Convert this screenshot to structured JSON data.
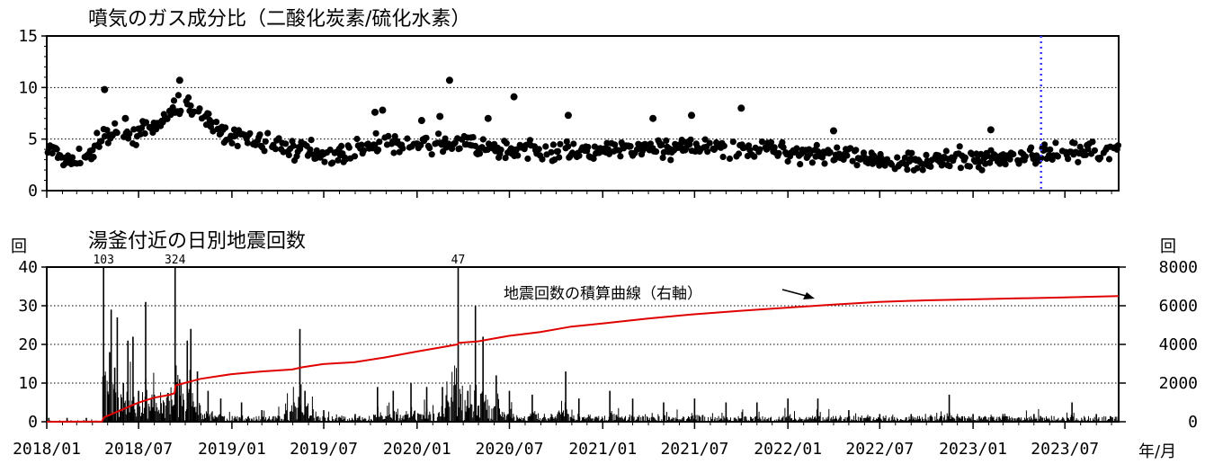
{
  "chart_data": [
    {
      "type": "scatter",
      "title": "噴気のガス成分比（二酸化炭素/硫化水素）",
      "yticks": [
        0,
        5,
        10,
        15
      ],
      "ylim": [
        0,
        15
      ],
      "xlim": [
        "2018-01-01",
        "2023-10-15"
      ],
      "grid": "horizontal dotted",
      "vline": {
        "date": "2023-05-15",
        "color": "#3b3bff",
        "style": "dotted"
      },
      "marker_color": "#000000",
      "series": [
        {
          "values": [
            {
              "x": "2018-01-01",
              "y": 4.0
            },
            {
              "x": "2018-01-20",
              "y": 3.4
            },
            {
              "x": "2018-02-10",
              "y": 3.0
            },
            {
              "x": "2018-03-01",
              "y": 2.9
            },
            {
              "x": "2018-03-25",
              "y": 3.5
            },
            {
              "x": "2018-04-15",
              "y": 4.7
            },
            {
              "x": "2018-05-10",
              "y": 5.5
            },
            {
              "x": "2018-06-05",
              "y": 5.4
            },
            {
              "x": "2018-07-01",
              "y": 5.5
            },
            {
              "x": "2018-07-25",
              "y": 5.9
            },
            {
              "x": "2018-08-15",
              "y": 6.8
            },
            {
              "x": "2018-09-05",
              "y": 7.8
            },
            {
              "x": "2018-09-25",
              "y": 8.3
            },
            {
              "x": "2018-10-15",
              "y": 8.1
            },
            {
              "x": "2018-11-05",
              "y": 7.1
            },
            {
              "x": "2018-11-25",
              "y": 6.1
            },
            {
              "x": "2018-12-20",
              "y": 5.5
            },
            {
              "x": "2019-01-20",
              "y": 5.2
            },
            {
              "x": "2019-02-20",
              "y": 4.8
            },
            {
              "x": "2019-03-25",
              "y": 4.4
            },
            {
              "x": "2019-05-01",
              "y": 4.1
            },
            {
              "x": "2019-06-01",
              "y": 3.9
            },
            {
              "x": "2019-07-01",
              "y": 3.6
            },
            {
              "x": "2019-08-01",
              "y": 3.5
            },
            {
              "x": "2019-09-01",
              "y": 3.9
            },
            {
              "x": "2019-10-01",
              "y": 4.4
            },
            {
              "x": "2019-11-01",
              "y": 4.5
            },
            {
              "x": "2019-12-15",
              "y": 4.4
            },
            {
              "x": "2020-02-01",
              "y": 4.3
            },
            {
              "x": "2020-03-15",
              "y": 4.6
            },
            {
              "x": "2020-05-01",
              "y": 4.2
            },
            {
              "x": "2020-06-15",
              "y": 4.0
            },
            {
              "x": "2020-08-01",
              "y": 3.9
            },
            {
              "x": "2020-09-15",
              "y": 3.8
            },
            {
              "x": "2020-11-01",
              "y": 3.9
            },
            {
              "x": "2020-12-15",
              "y": 3.8
            },
            {
              "x": "2021-02-01",
              "y": 4.0
            },
            {
              "x": "2021-04-01",
              "y": 4.1
            },
            {
              "x": "2021-06-01",
              "y": 4.1
            },
            {
              "x": "2021-08-01",
              "y": 4.2
            },
            {
              "x": "2021-10-01",
              "y": 4.0
            },
            {
              "x": "2021-12-01",
              "y": 3.9
            },
            {
              "x": "2022-02-01",
              "y": 3.7
            },
            {
              "x": "2022-04-01",
              "y": 3.5
            },
            {
              "x": "2022-06-01",
              "y": 2.9
            },
            {
              "x": "2022-07-15",
              "y": 2.7
            },
            {
              "x": "2022-09-01",
              "y": 3.0
            },
            {
              "x": "2022-11-01",
              "y": 3.0
            },
            {
              "x": "2023-01-01",
              "y": 3.1
            },
            {
              "x": "2023-02-15",
              "y": 3.2
            },
            {
              "x": "2023-04-01",
              "y": 3.3
            },
            {
              "x": "2023-05-15",
              "y": 3.5
            },
            {
              "x": "2023-07-01",
              "y": 3.7
            },
            {
              "x": "2023-08-15",
              "y": 3.8
            },
            {
              "x": "2023-10-01",
              "y": 4.0
            }
          ]
        }
      ],
      "outliers": [
        {
          "x": "2018-04-25",
          "y": 9.8
        },
        {
          "x": "2018-09-20",
          "y": 10.7
        },
        {
          "x": "2019-10-25",
          "y": 7.8
        },
        {
          "x": "2020-02-15",
          "y": 7.2
        },
        {
          "x": "2020-03-05",
          "y": 10.7
        },
        {
          "x": "2020-05-20",
          "y": 7.0
        },
        {
          "x": "2020-07-10",
          "y": 9.1
        },
        {
          "x": "2020-10-25",
          "y": 7.3
        },
        {
          "x": "2021-04-10",
          "y": 7.0
        },
        {
          "x": "2021-06-25",
          "y": 7.3
        },
        {
          "x": "2021-10-01",
          "y": 8.0
        },
        {
          "x": "2022-04-01",
          "y": 5.8
        },
        {
          "x": "2023-02-05",
          "y": 5.9
        },
        {
          "x": "2018-06-05",
          "y": 7.0
        },
        {
          "x": "2020-01-10",
          "y": 6.8
        },
        {
          "x": "2019-10-10",
          "y": 7.6
        }
      ]
    },
    {
      "type": "bar",
      "title": "湯釜付近の日別地震回数",
      "ylabel": "回",
      "ylabel_right": "回",
      "xlabel": "年/月",
      "yticks": [
        0,
        10,
        20,
        30,
        40
      ],
      "ylim": [
        0,
        40
      ],
      "ylim_right": [
        0,
        8000
      ],
      "yticks_right": [
        0,
        2000,
        4000,
        6000,
        8000
      ],
      "xlim": [
        "2018-01-01",
        "2023-10-15"
      ],
      "xticks": [
        "2018/01",
        "2018/07",
        "2019/01",
        "2019/07",
        "2020/01",
        "2020/07",
        "2021/01",
        "2021/07",
        "2022/01",
        "2022/07",
        "2023/01",
        "2023/07"
      ],
      "xtick_dates": [
        "2018-01-01",
        "2018-07-01",
        "2019-01-01",
        "2019-07-01",
        "2020-01-01",
        "2020-07-01",
        "2021-01-01",
        "2021-07-01",
        "2022-01-01",
        "2022-07-01",
        "2023-01-01",
        "2023-07-01"
      ],
      "grid": "horizontal dotted",
      "bar_color": "#000000",
      "bars": [
        {
          "x": "2018-01-05",
          "y": 1
        },
        {
          "x": "2018-02-10",
          "y": 1
        },
        {
          "x": "2018-03-20",
          "y": 1
        },
        {
          "x": "2018-04-23",
          "y": 40
        },
        {
          "x": "2018-04-26",
          "y": 12
        },
        {
          "x": "2018-05-05",
          "y": 18
        },
        {
          "x": "2018-05-08",
          "y": 29
        },
        {
          "x": "2018-05-15",
          "y": 14
        },
        {
          "x": "2018-05-20",
          "y": 27
        },
        {
          "x": "2018-06-01",
          "y": 10
        },
        {
          "x": "2018-06-10",
          "y": 21
        },
        {
          "x": "2018-06-20",
          "y": 22
        },
        {
          "x": "2018-07-01",
          "y": 8
        },
        {
          "x": "2018-07-15",
          "y": 31
        },
        {
          "x": "2018-08-01",
          "y": 7
        },
        {
          "x": "2018-08-20",
          "y": 5
        },
        {
          "x": "2018-09-11",
          "y": 40
        },
        {
          "x": "2018-09-20",
          "y": 11
        },
        {
          "x": "2018-10-05",
          "y": 21
        },
        {
          "x": "2018-10-12",
          "y": 24
        },
        {
          "x": "2018-10-25",
          "y": 13
        },
        {
          "x": "2018-11-15",
          "y": 8
        },
        {
          "x": "2018-12-10",
          "y": 6
        },
        {
          "x": "2019-01-20",
          "y": 5
        },
        {
          "x": "2019-03-01",
          "y": 3
        },
        {
          "x": "2019-04-15",
          "y": 2
        },
        {
          "x": "2019-05-15",
          "y": 24
        },
        {
          "x": "2019-05-25",
          "y": 8
        },
        {
          "x": "2019-07-01",
          "y": 3
        },
        {
          "x": "2019-09-01",
          "y": 2
        },
        {
          "x": "2019-10-15",
          "y": 9
        },
        {
          "x": "2019-11-15",
          "y": 8
        },
        {
          "x": "2019-12-20",
          "y": 10
        },
        {
          "x": "2020-01-20",
          "y": 9
        },
        {
          "x": "2020-02-20",
          "y": 9
        },
        {
          "x": "2020-03-22",
          "y": 40
        },
        {
          "x": "2020-04-10",
          "y": 8
        },
        {
          "x": "2020-04-25",
          "y": 30
        },
        {
          "x": "2020-05-10",
          "y": 22
        },
        {
          "x": "2020-06-05",
          "y": 12
        },
        {
          "x": "2020-07-01",
          "y": 8
        },
        {
          "x": "2020-08-15",
          "y": 7
        },
        {
          "x": "2020-10-20",
          "y": 13
        },
        {
          "x": "2020-11-15",
          "y": 6
        },
        {
          "x": "2021-01-15",
          "y": 8
        },
        {
          "x": "2021-03-01",
          "y": 6
        },
        {
          "x": "2021-05-01",
          "y": 5
        },
        {
          "x": "2021-07-01",
          "y": 6
        },
        {
          "x": "2021-09-01",
          "y": 5
        },
        {
          "x": "2021-11-01",
          "y": 5
        },
        {
          "x": "2022-01-01",
          "y": 6
        },
        {
          "x": "2022-03-01",
          "y": 6
        },
        {
          "x": "2022-05-01",
          "y": 3
        },
        {
          "x": "2022-07-01",
          "y": 2
        },
        {
          "x": "2022-09-01",
          "y": 2
        },
        {
          "x": "2022-11-15",
          "y": 7
        },
        {
          "x": "2023-01-01",
          "y": 2
        },
        {
          "x": "2023-03-01",
          "y": 2
        },
        {
          "x": "2023-05-01",
          "y": 2
        },
        {
          "x": "2023-07-15",
          "y": 5
        },
        {
          "x": "2023-09-01",
          "y": 2
        }
      ],
      "bar_annotations": [
        {
          "x": "2018-04-23",
          "label": "103"
        },
        {
          "x": "2018-09-11",
          "label": "324"
        },
        {
          "x": "2020-03-22",
          "label": "47"
        }
      ],
      "cumulative": {
        "name": "地震回数の積算曲線（右軸）",
        "axis": "right",
        "color": "#e00000",
        "points": [
          {
            "x": "2018-01-01",
            "y": 0
          },
          {
            "x": "2018-04-20",
            "y": 10
          },
          {
            "x": "2018-04-24",
            "y": 230
          },
          {
            "x": "2018-05-31",
            "y": 640
          },
          {
            "x": "2018-06-30",
            "y": 980
          },
          {
            "x": "2018-07-31",
            "y": 1240
          },
          {
            "x": "2018-08-31",
            "y": 1390
          },
          {
            "x": "2018-09-10",
            "y": 1480
          },
          {
            "x": "2018-09-12",
            "y": 1880
          },
          {
            "x": "2018-10-31",
            "y": 2220
          },
          {
            "x": "2018-12-31",
            "y": 2460
          },
          {
            "x": "2019-02-28",
            "y": 2600
          },
          {
            "x": "2019-04-30",
            "y": 2700
          },
          {
            "x": "2019-05-20",
            "y": 2820
          },
          {
            "x": "2019-06-30",
            "y": 2980
          },
          {
            "x": "2019-08-31",
            "y": 3080
          },
          {
            "x": "2019-10-31",
            "y": 3330
          },
          {
            "x": "2019-12-31",
            "y": 3630
          },
          {
            "x": "2020-02-29",
            "y": 3900
          },
          {
            "x": "2020-03-21",
            "y": 4000
          },
          {
            "x": "2020-03-23",
            "y": 4080
          },
          {
            "x": "2020-04-30",
            "y": 4160
          },
          {
            "x": "2020-06-30",
            "y": 4440
          },
          {
            "x": "2020-08-31",
            "y": 4640
          },
          {
            "x": "2020-10-31",
            "y": 4920
          },
          {
            "x": "2020-12-31",
            "y": 5080
          },
          {
            "x": "2021-03-31",
            "y": 5340
          },
          {
            "x": "2021-06-30",
            "y": 5560
          },
          {
            "x": "2021-09-30",
            "y": 5740
          },
          {
            "x": "2021-12-31",
            "y": 5900
          },
          {
            "x": "2022-03-31",
            "y": 6060
          },
          {
            "x": "2022-06-30",
            "y": 6200
          },
          {
            "x": "2022-09-30",
            "y": 6280
          },
          {
            "x": "2022-12-31",
            "y": 6330
          },
          {
            "x": "2023-03-31",
            "y": 6380
          },
          {
            "x": "2023-06-30",
            "y": 6430
          },
          {
            "x": "2023-10-15",
            "y": 6500
          }
        ]
      },
      "annotation_text": "地震回数の積算曲線（右軸）"
    }
  ]
}
